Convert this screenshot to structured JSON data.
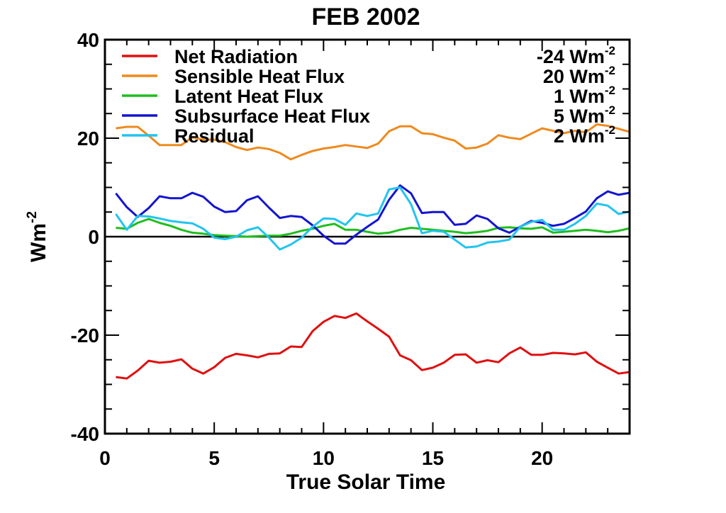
{
  "chart_data": {
    "type": "line",
    "title": "FEB 2002",
    "xlabel": "True Solar Time",
    "ylabel": "Wm",
    "ylabel_sup": "-2",
    "xlim": [
      0,
      24
    ],
    "ylim": [
      -40,
      40
    ],
    "xticks": [
      0,
      5,
      10,
      15,
      20
    ],
    "yticks": [
      40,
      20,
      0,
      -20,
      -40
    ],
    "legend_position": "top",
    "zero_line": true,
    "x": [
      0.5,
      1,
      1.5,
      2,
      2.5,
      3,
      3.5,
      4,
      4.5,
      5,
      5.5,
      6,
      6.5,
      7,
      7.5,
      8,
      8.5,
      9,
      9.5,
      10,
      10.5,
      11,
      11.5,
      12,
      12.5,
      13,
      13.5,
      14,
      14.5,
      15,
      15.5,
      16,
      16.5,
      17,
      17.5,
      18,
      18.5,
      19,
      19.5,
      20,
      20.5,
      21,
      21.5,
      22,
      22.5,
      23,
      23.5,
      24
    ],
    "series": [
      {
        "name": "Net Radiation",
        "mean_label": "-24 Wm",
        "mean_sup": "-2",
        "color": "#e01010",
        "values": [
          -28.5,
          -28.8,
          -27.2,
          -25.2,
          -25.6,
          -25.4,
          -24.9,
          -26.8,
          -27.8,
          -26.5,
          -24.6,
          -23.8,
          -24.1,
          -24.5,
          -23.8,
          -23.7,
          -22.3,
          -22.4,
          -19.2,
          -17.3,
          -16.1,
          -16.5,
          -15.6,
          -17.2,
          -18.7,
          -20.3,
          -24.1,
          -25.1,
          -27.1,
          -26.6,
          -25.6,
          -24.0,
          -23.9,
          -25.6,
          -25.1,
          -25.5,
          -23.7,
          -22.5,
          -24.0,
          -24.0,
          -23.6,
          -23.7,
          -23.9,
          -23.5,
          -25.4,
          -26.6,
          -27.8,
          -27.5
        ]
      },
      {
        "name": "Sensible Heat Flux",
        "mean_label": "20 Wm",
        "mean_sup": "-2",
        "color": "#ee8a1e",
        "values": [
          22.0,
          22.3,
          22.3,
          20.5,
          18.6,
          18.6,
          18.6,
          20.2,
          19.7,
          19.7,
          19.2,
          18.2,
          17.6,
          18.1,
          17.8,
          17.0,
          15.7,
          16.6,
          17.4,
          17.9,
          18.2,
          18.6,
          18.3,
          18.0,
          18.9,
          21.4,
          22.4,
          22.4,
          21.0,
          20.8,
          20.1,
          19.5,
          17.9,
          18.1,
          18.9,
          20.6,
          20.1,
          19.8,
          20.9,
          22.0,
          21.5,
          21.0,
          21.5,
          21.2,
          22.8,
          22.5,
          21.9,
          21.3
        ]
      },
      {
        "name": "Latent Heat Flux",
        "mean_label": "1 Wm",
        "mean_sup": "-2",
        "color": "#1ebe1e",
        "values": [
          1.8,
          1.6,
          2.8,
          3.6,
          2.8,
          2.2,
          1.4,
          0.8,
          0.6,
          0.3,
          0.2,
          0.1,
          0.0,
          0.1,
          0.2,
          0.2,
          0.6,
          1.2,
          1.6,
          2.2,
          2.6,
          1.4,
          1.4,
          1.0,
          0.6,
          0.8,
          1.4,
          1.8,
          1.6,
          1.4,
          1.2,
          1.0,
          0.7,
          0.9,
          1.2,
          1.8,
          1.9,
          1.7,
          1.6,
          1.9,
          0.8,
          1.0,
          1.2,
          1.4,
          1.2,
          0.9,
          1.2,
          1.7
        ]
      },
      {
        "name": "Subsurface Heat Flux",
        "mean_label": "5 Wm",
        "mean_sup": "-2",
        "color": "#1414d0",
        "values": [
          8.8,
          6.0,
          4.0,
          5.8,
          8.2,
          7.8,
          7.8,
          8.9,
          8.1,
          6.1,
          5.0,
          5.2,
          7.4,
          8.2,
          5.9,
          3.8,
          4.2,
          4.0,
          2.3,
          0.2,
          -1.4,
          -1.4,
          0.4,
          2.0,
          3.5,
          7.5,
          10.4,
          8.8,
          4.8,
          5.0,
          5.0,
          2.4,
          2.6,
          4.3,
          3.6,
          1.7,
          0.8,
          2.0,
          3.2,
          2.8,
          2.2,
          2.6,
          3.8,
          5.1,
          7.8,
          9.2,
          8.5,
          8.9
        ]
      },
      {
        "name": "Residual",
        "mean_label": "2 Wm",
        "mean_sup": "-2",
        "color": "#22c4ee",
        "values": [
          4.6,
          1.4,
          4.2,
          4.1,
          3.7,
          3.2,
          2.9,
          2.7,
          1.6,
          -0.2,
          -0.5,
          0.0,
          1.3,
          1.9,
          -0.2,
          -2.6,
          -1.6,
          -0.2,
          2.0,
          3.7,
          3.6,
          2.4,
          4.7,
          4.2,
          4.7,
          9.6,
          10.0,
          6.6,
          0.7,
          1.2,
          1.0,
          -0.6,
          -2.2,
          -2.0,
          -1.2,
          -1.0,
          -0.6,
          2.0,
          3.0,
          3.4,
          1.4,
          1.4,
          2.6,
          4.2,
          6.7,
          6.3,
          4.6,
          5.1
        ]
      }
    ]
  }
}
